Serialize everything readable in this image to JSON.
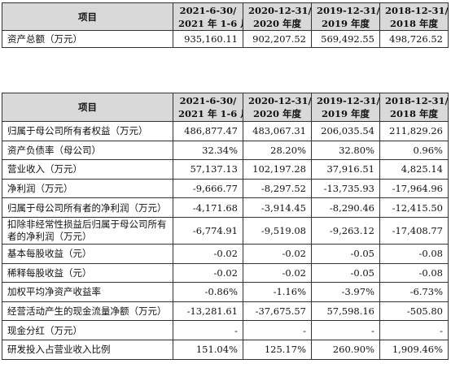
{
  "table_top": {
    "header": {
      "item": "项目",
      "cols": [
        {
          "line1": "2021-6-30/",
          "line2": "2021 年 1-6 月"
        },
        {
          "line1": "2020-12-31/",
          "line2": "2020 年度"
        },
        {
          "line1": "2019-12-31/",
          "line2": "2019 年度"
        },
        {
          "line1": "2018-12-31/",
          "line2": "2018 年度"
        }
      ]
    },
    "rows": [
      {
        "label": "资产总额（万元）",
        "values": [
          "935,160.11",
          "902,207.52",
          "569,492.55",
          "498,726.52"
        ]
      }
    ]
  },
  "table_main": {
    "header": {
      "item": "项目",
      "cols": [
        {
          "line1": "2021-6-30/",
          "line2": "2021 年 1-6 月"
        },
        {
          "line1": "2020-12-31/",
          "line2": "2020 年度"
        },
        {
          "line1": "2019-12-31/",
          "line2": "2019 年度"
        },
        {
          "line1": "2018-12-31/",
          "line2": "2018 年度"
        }
      ]
    },
    "rows": [
      {
        "label": "归属于母公司所有者权益（万元）",
        "values": [
          "486,877.47",
          "483,067.31",
          "206,035.54",
          "211,829.26"
        ]
      },
      {
        "label": "资产负债率（母公司）",
        "values": [
          "32.34%",
          "28.20%",
          "32.80%",
          "0.96%"
        ]
      },
      {
        "label": "营业收入（万元）",
        "values": [
          "57,137.13",
          "102,197.28",
          "37,916.51",
          "4,825.14"
        ]
      },
      {
        "label": "净利润（万元）",
        "values": [
          "-9,666.77",
          "-8,297.52",
          "-13,735.93",
          "-17,964.96"
        ]
      },
      {
        "label": "归属于母公司所有者的净利润（万元）",
        "values": [
          "-4,171.68",
          "-3,914.45",
          "-8,290.46",
          "-12,415.50"
        ]
      },
      {
        "label": "扣除非经常性损益后归属于母公司所有者的净利润（万元）",
        "values": [
          "-6,774.91",
          "-9,519.08",
          "-9,263.12",
          "-17,408.77"
        ]
      },
      {
        "label": "基本每股收益（元）",
        "values": [
          "-0.02",
          "-0.02",
          "-0.05",
          "-0.08"
        ]
      },
      {
        "label": "稀释每股收益（元）",
        "values": [
          "-0.02",
          "-0.02",
          "-0.05",
          "-0.08"
        ]
      },
      {
        "label": "加权平均净资产收益率",
        "values": [
          "-0.86%",
          "-1.16%",
          "-3.97%",
          "-6.73%"
        ]
      },
      {
        "label": "经营活动产生的现金流量净额（万元）",
        "values": [
          "-13,281.61",
          "-37,675.57",
          "57,598.16",
          "-505.80"
        ]
      },
      {
        "label": "现金分红（万元）",
        "values": [
          "-",
          "-",
          "-",
          "-"
        ]
      },
      {
        "label": "研发投入占营业收入比例",
        "values": [
          "151.04%",
          "125.17%",
          "260.90%",
          "1,909.46%"
        ]
      }
    ]
  }
}
